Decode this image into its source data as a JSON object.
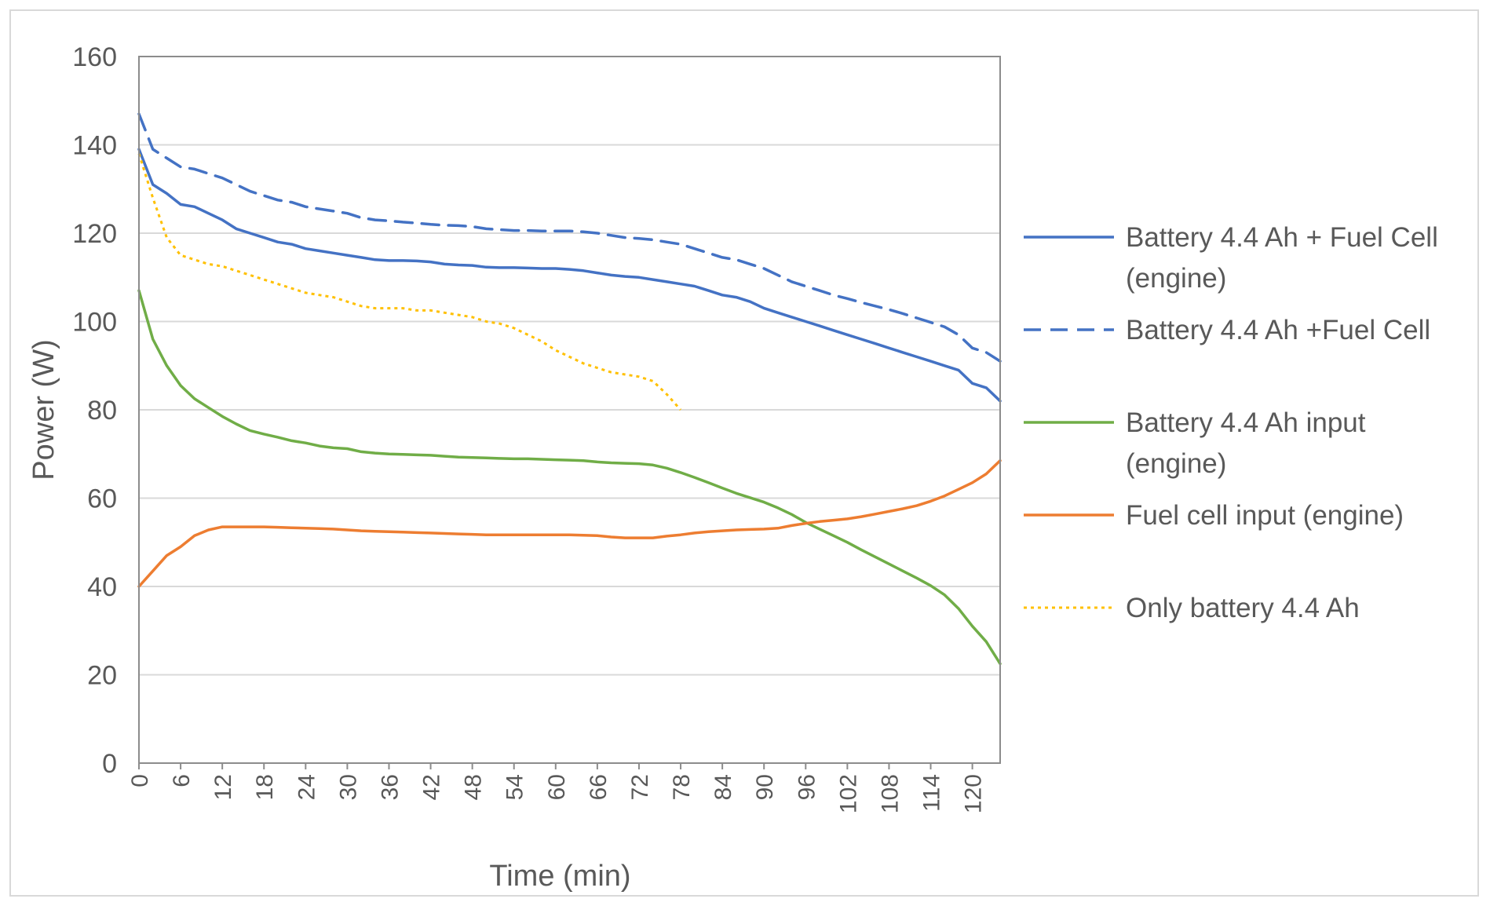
{
  "chart_data": {
    "type": "line",
    "title": "",
    "xlabel": "Time (min)",
    "ylabel": "Power (W)",
    "ylim": [
      0,
      160
    ],
    "yticks": [
      0,
      20,
      40,
      60,
      80,
      100,
      120,
      140,
      160
    ],
    "xlim": [
      0,
      124
    ],
    "xticks": [
      0,
      6,
      12,
      18,
      24,
      30,
      36,
      42,
      48,
      54,
      60,
      66,
      72,
      78,
      84,
      90,
      96,
      102,
      108,
      114,
      120
    ],
    "grid": true,
    "legend_position": "right",
    "series": [
      {
        "name": "Battery 4.4 Ah + Fuel Cell (engine)",
        "legend_lines": [
          "Battery 4.4 Ah + Fuel Cell",
          "(engine)"
        ],
        "color": "#4472C4",
        "dash": "solid",
        "x": [
          0,
          2,
          4,
          6,
          8,
          10,
          12,
          14,
          16,
          18,
          20,
          22,
          24,
          26,
          28,
          30,
          32,
          34,
          36,
          38,
          40,
          42,
          44,
          46,
          48,
          50,
          52,
          54,
          56,
          58,
          60,
          62,
          64,
          66,
          68,
          70,
          72,
          74,
          76,
          78,
          80,
          82,
          84,
          86,
          88,
          90,
          92,
          94,
          96,
          98,
          100,
          102,
          104,
          106,
          108,
          110,
          112,
          114,
          116,
          118,
          120,
          122,
          124
        ],
        "y": [
          139,
          131,
          129,
          126.5,
          126,
          124.5,
          123,
          121,
          120,
          119,
          118,
          117.5,
          116.5,
          116,
          115.5,
          115,
          114.5,
          114,
          113.8,
          113.8,
          113.7,
          113.5,
          113,
          112.8,
          112.7,
          112.3,
          112.2,
          112.2,
          112.1,
          112,
          112,
          111.8,
          111.5,
          111,
          110.5,
          110.2,
          110,
          109.5,
          109,
          108.5,
          108,
          107,
          106,
          105.5,
          104.5,
          103,
          102,
          101,
          100,
          99,
          98,
          97,
          96,
          95,
          94,
          93,
          92,
          91,
          90,
          89,
          86,
          85,
          82
        ]
      },
      {
        "name": "Battery 4.4 Ah +Fuel Cell",
        "legend_lines": [
          "Battery 4.4 Ah +Fuel Cell"
        ],
        "color": "#4472C4",
        "dash": "dashed",
        "x": [
          0,
          2,
          4,
          6,
          8,
          10,
          12,
          14,
          16,
          18,
          20,
          22,
          24,
          26,
          28,
          30,
          32,
          34,
          36,
          38,
          40,
          42,
          44,
          46,
          48,
          50,
          52,
          54,
          56,
          58,
          60,
          62,
          64,
          66,
          68,
          70,
          72,
          74,
          76,
          78,
          80,
          82,
          84,
          86,
          88,
          90,
          92,
          94,
          96,
          98,
          100,
          102,
          104,
          106,
          108,
          110,
          112,
          114,
          116,
          118,
          120,
          122,
          124
        ],
        "y": [
          147,
          139,
          137,
          135,
          134.5,
          133.5,
          132.5,
          131,
          129.5,
          128.5,
          127.5,
          127,
          126,
          125.5,
          125,
          124.5,
          123.5,
          123,
          122.8,
          122.5,
          122.3,
          122,
          121.8,
          121.7,
          121.5,
          121,
          120.8,
          120.6,
          120.6,
          120.5,
          120.5,
          120.5,
          120.3,
          120,
          119.5,
          119,
          118.8,
          118.5,
          118,
          117.5,
          116.5,
          115.5,
          114.5,
          114,
          113,
          112,
          110.5,
          109,
          108,
          107,
          106,
          105.2,
          104.3,
          103.5,
          102.7,
          101.8,
          100.8,
          99.8,
          98.8,
          97,
          94,
          93,
          91
        ]
      },
      {
        "name": "Battery 4.4 Ah input (engine)",
        "legend_lines": [
          "Battery 4.4 Ah input",
          "(engine)"
        ],
        "color": "#70AD47",
        "dash": "solid",
        "x": [
          0,
          2,
          4,
          6,
          8,
          10,
          12,
          14,
          16,
          18,
          20,
          22,
          24,
          26,
          28,
          30,
          32,
          34,
          36,
          38,
          40,
          42,
          44,
          46,
          48,
          50,
          52,
          54,
          56,
          58,
          60,
          62,
          64,
          66,
          68,
          70,
          72,
          74,
          76,
          78,
          80,
          82,
          84,
          86,
          88,
          90,
          92,
          94,
          96,
          98,
          100,
          102,
          104,
          106,
          108,
          110,
          112,
          114,
          116,
          118,
          120,
          122,
          124
        ],
        "y": [
          107,
          96,
          90,
          85.5,
          82.5,
          80.5,
          78.5,
          76.8,
          75.3,
          74.5,
          73.8,
          73,
          72.5,
          71.8,
          71.4,
          71.2,
          70.5,
          70.2,
          70,
          69.9,
          69.8,
          69.7,
          69.5,
          69.3,
          69.2,
          69.1,
          69,
          68.9,
          68.9,
          68.8,
          68.7,
          68.6,
          68.5,
          68.2,
          68,
          67.9,
          67.8,
          67.5,
          66.8,
          65.8,
          64.7,
          63.5,
          62.3,
          61.1,
          60.1,
          59.1,
          57.8,
          56.3,
          54.5,
          53,
          51.5,
          50,
          48.3,
          46.7,
          45.1,
          43.5,
          41.9,
          40.2,
          38.1,
          35,
          31,
          27.5,
          22.5
        ]
      },
      {
        "name": "Fuel cell input (engine)",
        "legend_lines": [
          "Fuel cell input (engine)"
        ],
        "color": "#ED7D31",
        "dash": "solid",
        "x": [
          0,
          2,
          4,
          6,
          8,
          10,
          12,
          14,
          16,
          18,
          20,
          22,
          24,
          26,
          28,
          30,
          32,
          34,
          36,
          38,
          40,
          42,
          44,
          46,
          48,
          50,
          52,
          54,
          56,
          58,
          60,
          62,
          64,
          66,
          68,
          70,
          72,
          74,
          76,
          78,
          80,
          82,
          84,
          86,
          88,
          90,
          92,
          94,
          96,
          98,
          100,
          102,
          104,
          106,
          108,
          110,
          112,
          114,
          116,
          118,
          120,
          122,
          124
        ],
        "y": [
          40,
          43.5,
          47,
          49,
          51.5,
          52.8,
          53.5,
          53.5,
          53.5,
          53.5,
          53.4,
          53.3,
          53.2,
          53.1,
          53,
          52.8,
          52.6,
          52.5,
          52.4,
          52.3,
          52.2,
          52.1,
          52,
          51.9,
          51.8,
          51.7,
          51.7,
          51.7,
          51.7,
          51.7,
          51.7,
          51.7,
          51.6,
          51.5,
          51.2,
          51,
          51,
          51,
          51.4,
          51.7,
          52.1,
          52.4,
          52.6,
          52.8,
          52.9,
          53,
          53.2,
          53.8,
          54.3,
          54.7,
          55,
          55.3,
          55.8,
          56.4,
          57,
          57.6,
          58.3,
          59.3,
          60.5,
          62,
          63.5,
          65.5,
          68.5
        ]
      },
      {
        "name": "Only battery 4.4 Ah",
        "legend_lines": [
          "Only battery 4.4 Ah"
        ],
        "color": "#FFC000",
        "dash": "dotted",
        "x": [
          0,
          2,
          4,
          6,
          8,
          10,
          12,
          14,
          16,
          18,
          20,
          22,
          24,
          26,
          28,
          30,
          32,
          34,
          36,
          38,
          40,
          42,
          44,
          46,
          48,
          50,
          52,
          54,
          56,
          58,
          60,
          62,
          64,
          66,
          68,
          70,
          72,
          74,
          76,
          78
        ],
        "y": [
          138,
          128,
          119,
          115,
          114,
          113,
          112.5,
          111.5,
          110.5,
          109.5,
          108.5,
          107.5,
          106.5,
          106,
          105.5,
          104.5,
          103.5,
          103,
          103,
          103,
          102.5,
          102.5,
          102,
          101.5,
          101,
          100,
          99.5,
          98.5,
          97,
          95.5,
          93.5,
          92,
          90.5,
          89.5,
          88.5,
          88,
          87.5,
          86.5,
          83.5,
          80
        ]
      }
    ]
  }
}
